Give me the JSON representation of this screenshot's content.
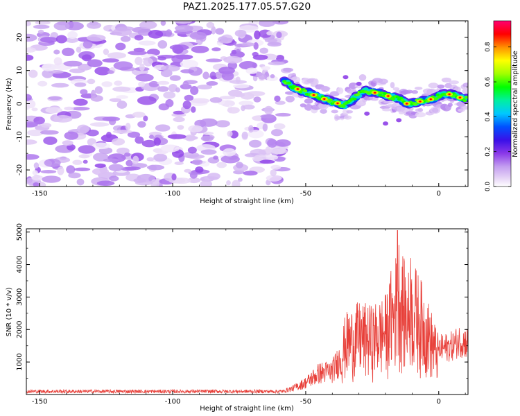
{
  "title": "PAZ1.2025.177.05.57.G20",
  "chart_data": [
    {
      "type": "heatmap",
      "title": "PAZ1.2025.177.05.57.G20",
      "xlabel": "Height of straight line (km)",
      "ylabel": "Frequency (Hz)",
      "xlim": [
        -155,
        11
      ],
      "ylim": [
        -25,
        25
      ],
      "xticks": [
        -150,
        -100,
        -50,
        0
      ],
      "yticks": [
        -20,
        -10,
        0,
        10,
        20
      ],
      "colorbar": {
        "label": "Normalized spectral amplitude",
        "range": [
          0.0,
          0.95
        ],
        "ticks": [
          0.0,
          0.2,
          0.4,
          0.6,
          0.8
        ],
        "colormap": "rainbow (white-lavender-purple-blue-cyan-green-yellow-orange-red-magenta)"
      },
      "noise_region": {
        "x_range": [
          -155,
          -58
        ],
        "y_range": [
          -25,
          25
        ],
        "amplitude": [
          0.0,
          0.15
        ]
      },
      "signal_ridge": [
        {
          "x": -58,
          "y": 7
        },
        {
          "x": -55,
          "y": 5
        },
        {
          "x": -50,
          "y": 3.5
        },
        {
          "x": -45,
          "y": 2
        },
        {
          "x": -40,
          "y": 0.5
        },
        {
          "x": -35,
          "y": -0.5
        },
        {
          "x": -32,
          "y": 1.5
        },
        {
          "x": -28,
          "y": 4
        },
        {
          "x": -25,
          "y": 3.5
        },
        {
          "x": -20,
          "y": 2.5
        },
        {
          "x": -15,
          "y": 1.5
        },
        {
          "x": -12,
          "y": 0
        },
        {
          "x": -8,
          "y": 0.5
        },
        {
          "x": -5,
          "y": 1
        },
        {
          "x": -2,
          "y": 1.5
        },
        {
          "x": 0,
          "y": 2.5
        },
        {
          "x": 3,
          "y": 3
        },
        {
          "x": 6,
          "y": 2.5
        },
        {
          "x": 9,
          "y": 1.5
        },
        {
          "x": 11,
          "y": 1.5
        }
      ]
    },
    {
      "type": "line",
      "xlabel": "Height of straight line (km)",
      "ylabel": "SNR (10 * v/v)",
      "xlim": [
        -155,
        11
      ],
      "ylim": [
        0,
        5100
      ],
      "xticks": [
        -150,
        -100,
        -50,
        0
      ],
      "yticks": [
        1000,
        2000,
        3000,
        4000,
        5000
      ],
      "color": "#e8403a",
      "envelope": [
        {
          "x": -155,
          "y": 100
        },
        {
          "x": -80,
          "y": 100
        },
        {
          "x": -60,
          "y": 100
        },
        {
          "x": -55,
          "y": 250
        },
        {
          "x": -50,
          "y": 500
        },
        {
          "x": -45,
          "y": 900
        },
        {
          "x": -40,
          "y": 1000
        },
        {
          "x": -37,
          "y": 1500
        },
        {
          "x": -35,
          "y": 2200
        },
        {
          "x": -30,
          "y": 2500
        },
        {
          "x": -25,
          "y": 2400
        },
        {
          "x": -20,
          "y": 2700
        },
        {
          "x": -17,
          "y": 3400
        },
        {
          "x": -15,
          "y": 4300
        },
        {
          "x": -12,
          "y": 3300
        },
        {
          "x": -9,
          "y": 3500
        },
        {
          "x": -5,
          "y": 2800
        },
        {
          "x": 0,
          "y": 1600
        },
        {
          "x": 5,
          "y": 1700
        },
        {
          "x": 8,
          "y": 1900
        },
        {
          "x": 11,
          "y": 1800
        }
      ],
      "peaks": [
        {
          "x": -15.5,
          "y": 5050
        },
        {
          "x": -10.5,
          "y": 4200
        },
        {
          "x": -18,
          "y": 3800
        }
      ]
    }
  ]
}
